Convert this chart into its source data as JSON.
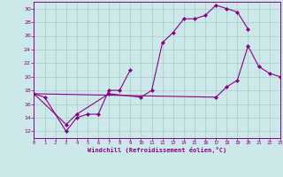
{
  "bg_color": "#cce8e8",
  "line_color": "#880088",
  "grid_color": "#aacccc",
  "xlabel": "Windchill (Refroidissement éolien,°C)",
  "xlim": [
    0,
    23
  ],
  "ylim": [
    11,
    31
  ],
  "yticks": [
    12,
    14,
    16,
    18,
    20,
    22,
    24,
    26,
    28,
    30
  ],
  "xticks": [
    0,
    1,
    2,
    3,
    4,
    5,
    6,
    7,
    8,
    9,
    10,
    11,
    12,
    13,
    14,
    15,
    16,
    17,
    18,
    19,
    20,
    21,
    22,
    23
  ],
  "line1_x": [
    0,
    1,
    3,
    4,
    5,
    6,
    7,
    8,
    9
  ],
  "line1_y": [
    17.5,
    17.0,
    12.0,
    14.0,
    14.5,
    14.5,
    18.0,
    18.0,
    21.0
  ],
  "line2_x": [
    0,
    3,
    4,
    7,
    10,
    11,
    12,
    13,
    14,
    15,
    16,
    17,
    18,
    19,
    20
  ],
  "line2_y": [
    17.5,
    13.0,
    14.5,
    17.5,
    17.0,
    18.0,
    25.0,
    26.5,
    28.5,
    28.5,
    29.0,
    30.5,
    30.0,
    29.5,
    27.0
  ],
  "line3_x": [
    0,
    17,
    18,
    19,
    20,
    21,
    22,
    23
  ],
  "line3_y": [
    17.5,
    17.0,
    18.5,
    19.5,
    24.5,
    21.5,
    20.5,
    20.0
  ]
}
